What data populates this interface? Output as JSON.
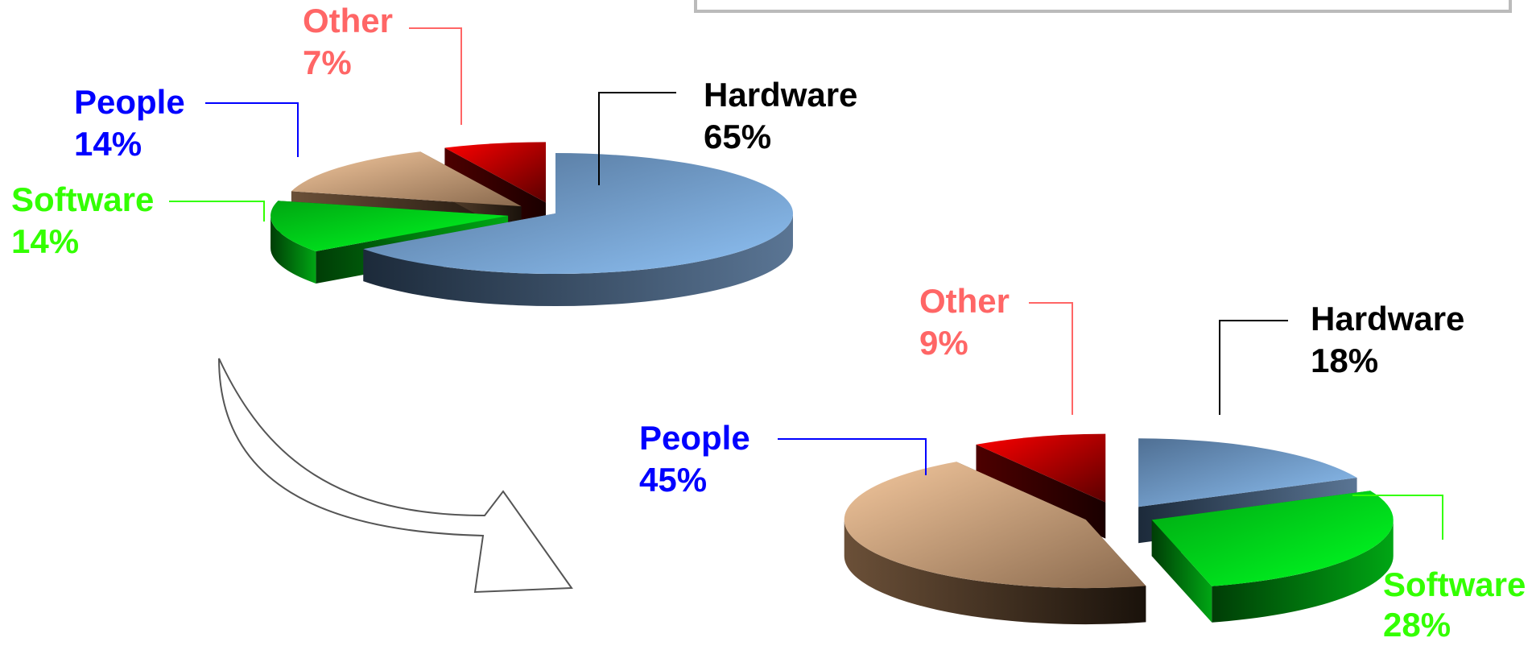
{
  "chart_data": [
    {
      "type": "pie",
      "slices": [
        {
          "label": "Hardware",
          "value": 65,
          "pct_label": "65%",
          "color": "#7fb0e6",
          "label_color": "#000000"
        },
        {
          "label": "Software",
          "value": 14,
          "pct_label": "14%",
          "color": "#00e51b",
          "label_color": "#33ff00"
        },
        {
          "label": "People",
          "value": 14,
          "pct_label": "14%",
          "color": "#e8bd93",
          "label_color": "#0000ff"
        },
        {
          "label": "Other",
          "value": 7,
          "pct_label": "7%",
          "color": "#ff0000",
          "label_color": "#ff6666"
        }
      ]
    },
    {
      "type": "pie",
      "slices": [
        {
          "label": "Hardware",
          "value": 18,
          "pct_label": "18%",
          "color": "#7fb0e6",
          "label_color": "#000000"
        },
        {
          "label": "Software",
          "value": 28,
          "pct_label": "28%",
          "color": "#00e51b",
          "label_color": "#33ff00"
        },
        {
          "label": "People",
          "value": 45,
          "pct_label": "45%",
          "color": "#e8bd93",
          "label_color": "#0000ff"
        },
        {
          "label": "Other",
          "value": 9,
          "pct_label": "9%",
          "color": "#ff0000",
          "label_color": "#ff6666"
        }
      ]
    }
  ],
  "arrow_color": "#555555",
  "frame_color": "#bbbbbb"
}
